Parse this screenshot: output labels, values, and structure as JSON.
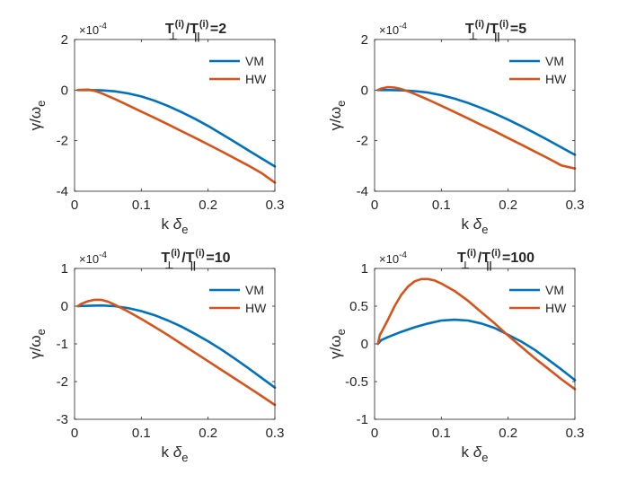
{
  "chart_data": [
    {
      "type": "line",
      "title": {
        "base1": "T",
        "sub1": "⊥",
        "sup1": "(i)",
        "sep": "/",
        "base2": "T",
        "sub2": "||",
        "sup2": "(i)",
        "tail": " =2"
      },
      "xlabel": {
        "base": "k",
        "greek": "δ",
        "sub": "e"
      },
      "ylabel": {
        "base": "γ/ω",
        "sub": "e"
      },
      "exponent": {
        "base": "×10",
        "power": "-4"
      },
      "xlim": [
        0,
        0.3
      ],
      "ylim": [
        -4,
        2
      ],
      "xticks": [
        "0",
        "0.1",
        "0.2",
        "0.3"
      ],
      "yticks": [
        "-4",
        "-2",
        "0",
        "2"
      ],
      "xtickvals": [
        0,
        0.1,
        0.2,
        0.3
      ],
      "ytickvals": [
        -4,
        -2,
        0,
        2
      ],
      "legend": "top-right",
      "series": [
        {
          "name": "VM",
          "color": "#0072BD",
          "x": [
            0.005,
            0.02,
            0.04,
            0.06,
            0.08,
            0.1,
            0.12,
            0.14,
            0.16,
            0.18,
            0.2,
            0.22,
            0.24,
            0.26,
            0.28,
            0.3
          ],
          "y": [
            0,
            0,
            -0.01,
            -0.05,
            -0.13,
            -0.25,
            -0.42,
            -0.63,
            -0.87,
            -1.13,
            -1.42,
            -1.73,
            -2.05,
            -2.38,
            -2.7,
            -3.02
          ]
        },
        {
          "name": "HW",
          "color": "#D95319",
          "x": [
            0.005,
            0.01,
            0.02,
            0.03,
            0.04,
            0.06,
            0.08,
            0.1,
            0.12,
            0.14,
            0.16,
            0.18,
            0.2,
            0.22,
            0.24,
            0.26,
            0.28,
            0.3
          ],
          "y": [
            0,
            0.01,
            0.02,
            -0.03,
            -0.12,
            -0.35,
            -0.6,
            -0.85,
            -1.1,
            -1.36,
            -1.62,
            -1.88,
            -2.15,
            -2.42,
            -2.7,
            -2.98,
            -3.28,
            -3.66
          ]
        }
      ]
    },
    {
      "type": "line",
      "title": {
        "base1": "T",
        "sub1": "⊥",
        "sup1": "(i)",
        "sep": "/",
        "base2": "T",
        "sub2": "||",
        "sup2": "(i)",
        "tail": " =5"
      },
      "xlabel": {
        "base": "k",
        "greek": "δ",
        "sub": "e"
      },
      "ylabel": {
        "base": "γ/ω",
        "sub": "e"
      },
      "exponent": {
        "base": "×10",
        "power": "-4"
      },
      "xlim": [
        0,
        0.3
      ],
      "ylim": [
        -4,
        2
      ],
      "xticks": [
        "0",
        "0.1",
        "0.2",
        "0.3"
      ],
      "yticks": [
        "-4",
        "-2",
        "0",
        "2"
      ],
      "xtickvals": [
        0,
        0.1,
        0.2,
        0.3
      ],
      "ytickvals": [
        -4,
        -2,
        0,
        2
      ],
      "legend": "top-right",
      "series": [
        {
          "name": "VM",
          "color": "#0072BD",
          "x": [
            0.005,
            0.02,
            0.04,
            0.06,
            0.08,
            0.1,
            0.12,
            0.14,
            0.16,
            0.18,
            0.2,
            0.22,
            0.24,
            0.26,
            0.28,
            0.3
          ],
          "y": [
            0,
            0,
            -0.01,
            -0.04,
            -0.1,
            -0.2,
            -0.34,
            -0.51,
            -0.71,
            -0.93,
            -1.17,
            -1.43,
            -1.7,
            -1.98,
            -2.27,
            -2.56
          ]
        },
        {
          "name": "HW",
          "color": "#D95319",
          "x": [
            0.005,
            0.01,
            0.02,
            0.03,
            0.04,
            0.05,
            0.06,
            0.08,
            0.1,
            0.12,
            0.14,
            0.16,
            0.18,
            0.2,
            0.22,
            0.24,
            0.26,
            0.28,
            0.3
          ],
          "y": [
            0,
            0.06,
            0.12,
            0.1,
            0.04,
            -0.05,
            -0.15,
            -0.38,
            -0.62,
            -0.87,
            -1.12,
            -1.38,
            -1.63,
            -1.9,
            -2.16,
            -2.43,
            -2.7,
            -2.98,
            -3.1
          ]
        }
      ]
    },
    {
      "type": "line",
      "title": {
        "base1": "T",
        "sub1": "⊥",
        "sup1": "(i)",
        "sep": "/",
        "base2": "T",
        "sub2": "||",
        "sup2": "(i)",
        "tail": " =10"
      },
      "xlabel": {
        "base": "k",
        "greek": "δ",
        "sub": "e"
      },
      "ylabel": {
        "base": "γ/ω",
        "sub": "e"
      },
      "exponent": {
        "base": "×10",
        "power": "-4"
      },
      "xlim": [
        0,
        0.3
      ],
      "ylim": [
        -3,
        1
      ],
      "xticks": [
        "0",
        "0.1",
        "0.2",
        "0.3"
      ],
      "yticks": [
        "-3",
        "-2",
        "-1",
        "0",
        "1"
      ],
      "xtickvals": [
        0,
        0.1,
        0.2,
        0.3
      ],
      "ytickvals": [
        -3,
        -2,
        -1,
        0,
        1
      ],
      "legend": "top-right",
      "series": [
        {
          "name": "VM",
          "color": "#0072BD",
          "x": [
            0.005,
            0.02,
            0.04,
            0.06,
            0.08,
            0.1,
            0.12,
            0.14,
            0.16,
            0.18,
            0.2,
            0.22,
            0.24,
            0.26,
            0.28,
            0.3
          ],
          "y": [
            0,
            0.01,
            0.02,
            0,
            -0.05,
            -0.13,
            -0.24,
            -0.38,
            -0.54,
            -0.73,
            -0.93,
            -1.15,
            -1.39,
            -1.64,
            -1.9,
            -2.16
          ]
        },
        {
          "name": "HW",
          "color": "#D95319",
          "x": [
            0.005,
            0.01,
            0.02,
            0.03,
            0.04,
            0.05,
            0.06,
            0.08,
            0.1,
            0.12,
            0.14,
            0.16,
            0.18,
            0.2,
            0.22,
            0.24,
            0.26,
            0.28,
            0.3
          ],
          "y": [
            0,
            0.06,
            0.13,
            0.17,
            0.17,
            0.12,
            0.04,
            -0.14,
            -0.34,
            -0.55,
            -0.77,
            -1,
            -1.23,
            -1.46,
            -1.69,
            -1.92,
            -2.15,
            -2.38,
            -2.62
          ]
        }
      ]
    },
    {
      "type": "line",
      "title": {
        "base1": "T",
        "sub1": "⊥",
        "sup1": "(i)",
        "sep": "/",
        "base2": "T",
        "sub2": "||",
        "sup2": "(i)",
        "tail": " =100"
      },
      "xlabel": {
        "base": "k",
        "greek": "δ",
        "sub": "e"
      },
      "ylabel": {
        "base": "γ/ω",
        "sub": "e"
      },
      "exponent": {
        "base": "×10",
        "power": "-4"
      },
      "xlim": [
        0,
        0.3
      ],
      "ylim": [
        -1,
        1
      ],
      "xticks": [
        "0",
        "0.1",
        "0.2",
        "0.3"
      ],
      "yticks": [
        "-1",
        "-0.5",
        "0",
        "0.5",
        "1"
      ],
      "xtickvals": [
        0,
        0.1,
        0.2,
        0.3
      ],
      "ytickvals": [
        -1,
        -0.5,
        0,
        0.5,
        1
      ],
      "legend": "top-right",
      "series": [
        {
          "name": "VM",
          "color": "#0072BD",
          "x": [
            0.005,
            0.01,
            0.02,
            0.04,
            0.06,
            0.08,
            0.1,
            0.12,
            0.14,
            0.16,
            0.18,
            0.2,
            0.22,
            0.24,
            0.26,
            0.28,
            0.3
          ],
          "y": [
            0,
            0.05,
            0.09,
            0.16,
            0.22,
            0.27,
            0.31,
            0.32,
            0.31,
            0.27,
            0.21,
            0.12,
            0.03,
            -0.08,
            -0.21,
            -0.34,
            -0.48
          ]
        },
        {
          "name": "HW",
          "color": "#D95319",
          "x": [
            0.005,
            0.008,
            0.01,
            0.02,
            0.03,
            0.04,
            0.05,
            0.06,
            0.07,
            0.08,
            0.09,
            0.1,
            0.12,
            0.14,
            0.16,
            0.18,
            0.2,
            0.22,
            0.24,
            0.26,
            0.28,
            0.3
          ],
          "y": [
            0,
            0.12,
            0.15,
            0.32,
            0.5,
            0.65,
            0.76,
            0.83,
            0.86,
            0.86,
            0.84,
            0.8,
            0.7,
            0.57,
            0.42,
            0.27,
            0.11,
            -0.04,
            -0.19,
            -0.33,
            -0.47,
            -0.6
          ]
        }
      ]
    }
  ]
}
